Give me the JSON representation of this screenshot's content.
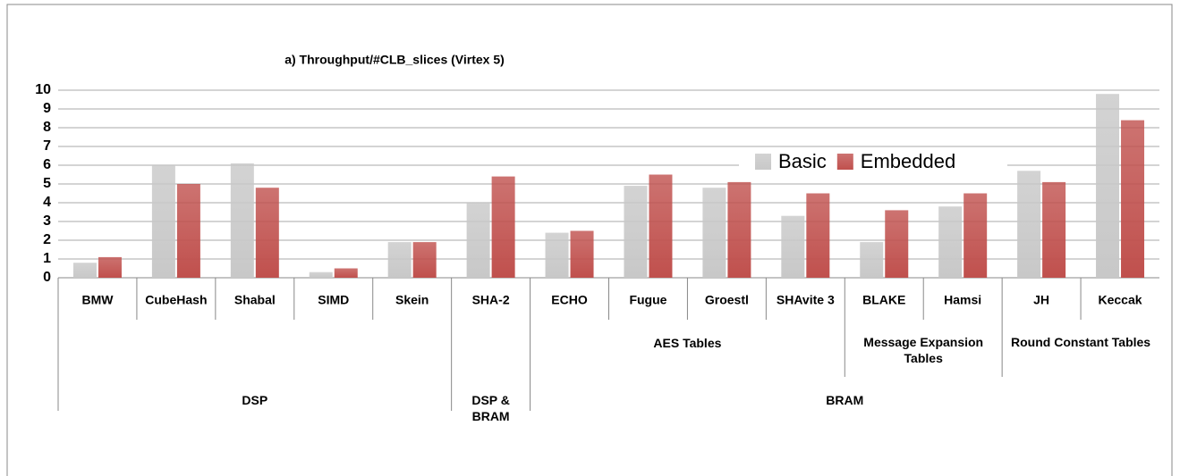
{
  "chart_data": {
    "type": "bar",
    "title": "a) Throughput/#CLB_slices (Virtex 5)",
    "categories": [
      "BMW",
      "CubeHash",
      "Shabal",
      "SIMD",
      "Skein",
      "SHA-2",
      "ECHO",
      "Fugue",
      "Groestl",
      "SHAvite 3",
      "BLAKE",
      "Hamsi",
      "JH",
      "Keccak"
    ],
    "series": [
      {
        "name": "Basic",
        "color": "#c8c8c8",
        "values": [
          0.8,
          6.0,
          6.1,
          0.3,
          1.9,
          4.0,
          2.4,
          4.9,
          4.8,
          3.3,
          1.9,
          3.8,
          5.7,
          9.8
        ]
      },
      {
        "name": "Embedded",
        "color": "#c0504d",
        "values": [
          1.1,
          5.0,
          4.8,
          0.5,
          1.9,
          5.4,
          2.5,
          5.5,
          5.1,
          4.5,
          3.6,
          4.5,
          5.1,
          8.4
        ]
      }
    ],
    "subgroups": [
      {
        "label": "AES Tables",
        "first": 6,
        "last": 9
      },
      {
        "label": "Message Expansion Tables",
        "first": 10,
        "last": 11
      },
      {
        "label": "Round Constant Tables",
        "first": 12,
        "last": 13
      }
    ],
    "groups": [
      {
        "label": "DSP",
        "first": 0,
        "last": 4
      },
      {
        "label": "DSP & BRAM",
        "first": 5,
        "last": 5
      },
      {
        "label": "BRAM",
        "first": 6,
        "last": 13
      }
    ],
    "ylim": [
      0,
      10
    ],
    "yticks": [
      0,
      1,
      2,
      3,
      4,
      5,
      6,
      7,
      8,
      9,
      10
    ],
    "grid": true,
    "legend": "right"
  }
}
